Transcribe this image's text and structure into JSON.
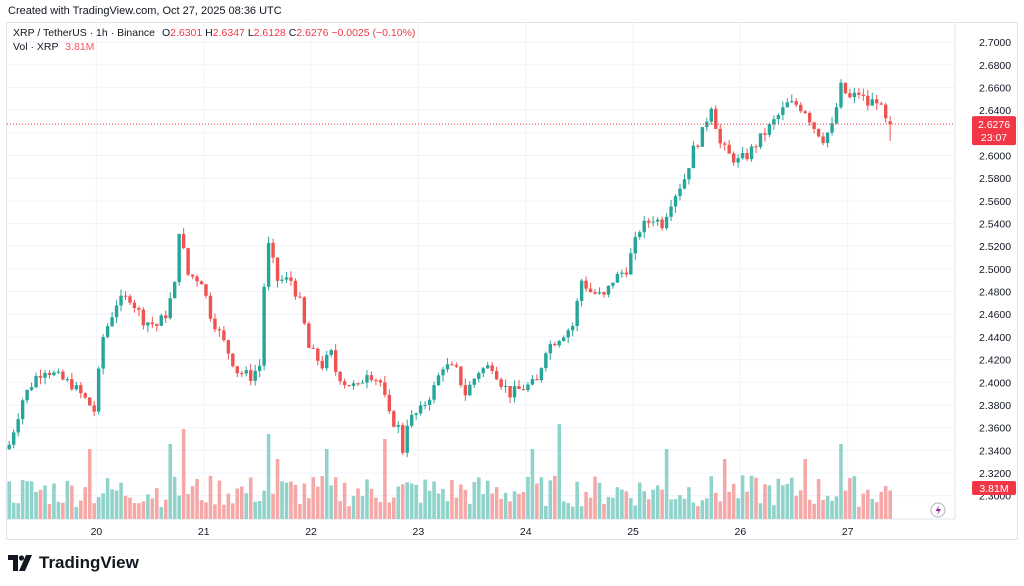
{
  "header": {
    "caption": "Created with TradingView.com, Oct 27, 2025 08:36 UTC"
  },
  "legend": {
    "symbol": "XRP / TetherUS · 1h · Binance",
    "o_label": "O",
    "o_value": "2.6301",
    "h_label": "H",
    "h_value": "2.6347",
    "l_label": "L",
    "l_value": "2.6128",
    "c_label": "C",
    "c_value": "2.6276",
    "change": "−0.0025 (−0.10%)",
    "vol_label": "Vol · XRP",
    "vol_value": "3.81M"
  },
  "price_badge": {
    "value": "2.6276",
    "countdown": "23:07"
  },
  "volume_badge": {
    "value": "3.81M"
  },
  "brand": {
    "name": "TradingView"
  },
  "colors": {
    "up": "#26a69a",
    "down": "#ef5350",
    "up_vol": "#8fd3cb",
    "down_vol": "#f5a8a8",
    "grid": "#f0f3fa",
    "badge": "#f23645"
  },
  "chart_data": {
    "type": "candlestick",
    "title": "XRP / TetherUS · 1h · Binance",
    "y_axis": {
      "min": 2.29,
      "max": 2.708,
      "ticks": [
        "2.7000",
        "2.6800",
        "2.6600",
        "2.6400",
        "2.6200",
        "2.6000",
        "2.5800",
        "2.5600",
        "2.5400",
        "2.5200",
        "2.5000",
        "2.4800",
        "2.4600",
        "2.4400",
        "2.4200",
        "2.4000",
        "2.3800",
        "2.3600",
        "2.3400",
        "2.3200",
        "2.3000"
      ]
    },
    "x_axis": {
      "labels": [
        {
          "label": "20",
          "index": 20
        },
        {
          "label": "21",
          "index": 44
        },
        {
          "label": "22",
          "index": 68
        },
        {
          "label": "23",
          "index": 92
        },
        {
          "label": "24",
          "index": 116
        },
        {
          "label": "25",
          "index": 140
        },
        {
          "label": "26",
          "index": 164
        },
        {
          "label": "27",
          "index": 188
        },
        {
          "label": "",
          "index": 212
        }
      ]
    },
    "last_price": 2.6276,
    "anchors": [
      [
        0,
        2.345
      ],
      [
        3,
        2.385
      ],
      [
        6,
        2.405
      ],
      [
        8,
        2.412
      ],
      [
        12,
        2.402
      ],
      [
        14,
        2.398
      ],
      [
        17,
        2.385
      ],
      [
        19,
        2.375
      ],
      [
        21,
        2.44
      ],
      [
        24,
        2.47
      ],
      [
        27,
        2.475
      ],
      [
        30,
        2.455
      ],
      [
        33,
        2.45
      ],
      [
        35,
        2.46
      ],
      [
        37,
        2.485
      ],
      [
        38,
        2.535
      ],
      [
        40,
        2.495
      ],
      [
        43,
        2.49
      ],
      [
        45,
        2.46
      ],
      [
        48,
        2.435
      ],
      [
        51,
        2.41
      ],
      [
        54,
        2.405
      ],
      [
        56,
        2.415
      ],
      [
        57,
        2.485
      ],
      [
        58,
        2.52
      ],
      [
        60,
        2.49
      ],
      [
        63,
        2.49
      ],
      [
        65,
        2.47
      ],
      [
        67,
        2.43
      ],
      [
        70,
        2.415
      ],
      [
        72,
        2.425
      ],
      [
        73,
        2.41
      ],
      [
        75,
        2.4
      ],
      [
        78,
        2.395
      ],
      [
        80,
        2.41
      ],
      [
        83,
        2.4
      ],
      [
        85,
        2.37
      ],
      [
        87,
        2.36
      ],
      [
        88,
        2.34
      ],
      [
        89,
        2.365
      ],
      [
        92,
        2.375
      ],
      [
        95,
        2.395
      ],
      [
        97,
        2.415
      ],
      [
        100,
        2.41
      ],
      [
        102,
        2.39
      ],
      [
        105,
        2.41
      ],
      [
        108,
        2.415
      ],
      [
        110,
        2.4
      ],
      [
        112,
        2.39
      ],
      [
        115,
        2.395
      ],
      [
        118,
        2.4
      ],
      [
        120,
        2.43
      ],
      [
        123,
        2.44
      ],
      [
        126,
        2.45
      ],
      [
        128,
        2.49
      ],
      [
        130,
        2.48
      ],
      [
        133,
        2.475
      ],
      [
        135,
        2.49
      ],
      [
        138,
        2.5
      ],
      [
        141,
        2.535
      ],
      [
        144,
        2.545
      ],
      [
        146,
        2.54
      ],
      [
        148,
        2.56
      ],
      [
        151,
        2.58
      ],
      [
        153,
        2.605
      ],
      [
        155,
        2.62
      ],
      [
        157,
        2.645
      ],
      [
        159,
        2.61
      ],
      [
        161,
        2.6
      ],
      [
        163,
        2.595
      ],
      [
        165,
        2.6
      ],
      [
        167,
        2.61
      ],
      [
        170,
        2.625
      ],
      [
        172,
        2.635
      ],
      [
        174,
        2.645
      ],
      [
        176,
        2.645
      ],
      [
        178,
        2.64
      ],
      [
        180,
        2.625
      ],
      [
        182,
        2.615
      ],
      [
        184,
        2.625
      ],
      [
        186,
        2.66
      ],
      [
        188,
        2.65
      ],
      [
        190,
        2.655
      ],
      [
        192,
        2.645
      ],
      [
        194,
        2.65
      ],
      [
        196,
        2.63
      ],
      [
        197,
        2.6276
      ]
    ],
    "volume_scale": {
      "max": 10
    },
    "volume_spikes": [
      [
        18,
        7
      ],
      [
        36,
        7.5
      ],
      [
        39,
        9
      ],
      [
        58,
        8.5
      ],
      [
        60,
        6
      ],
      [
        71,
        7
      ],
      [
        84,
        8
      ],
      [
        117,
        7
      ],
      [
        123,
        9.5
      ],
      [
        147,
        7
      ],
      [
        160,
        6
      ],
      [
        178,
        6
      ],
      [
        186,
        7.5
      ]
    ]
  }
}
